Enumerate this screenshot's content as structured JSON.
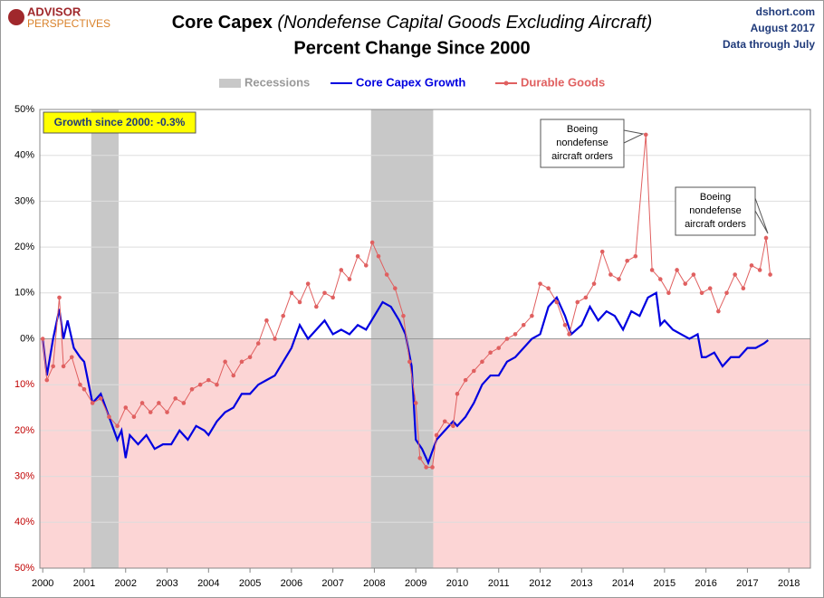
{
  "chart_data": {
    "type": "line",
    "logo": [
      "ADVISOR",
      "PERSPECTIVES"
    ],
    "source": [
      "dshort.com",
      "August 2017",
      "Data through July"
    ],
    "title": "Core Capex",
    "title_italic": "(Nondefense Capital Goods Excluding Aircraft)",
    "subtitle": "Percent Change Since 2000",
    "recessions_label": "Recessions",
    "recessions_color": "#c8c8c8",
    "recessions": [
      [
        2001.17,
        2001.83
      ],
      [
        2007.92,
        2009.42
      ]
    ],
    "negative_fill": "#fcd5d5",
    "xlim": [
      1999.93,
      2018.52
    ],
    "xticks": [
      2000,
      2001,
      2002,
      2003,
      2004,
      2005,
      2006,
      2007,
      2008,
      2009,
      2010,
      2011,
      2012,
      2013,
      2014,
      2015,
      2016,
      2017,
      2018
    ],
    "ylim": [
      -50,
      50
    ],
    "yticks": [
      {
        "value": -50,
        "label": "50%"
      },
      {
        "value": -40,
        "label": "40%"
      },
      {
        "value": -30,
        "label": "30%"
      },
      {
        "value": -20,
        "label": "20%"
      },
      {
        "value": -10,
        "label": "10%"
      },
      {
        "value": 0,
        "label": "0%"
      },
      {
        "value": 10,
        "label": "10%"
      },
      {
        "value": 20,
        "label": "20%"
      },
      {
        "value": 30,
        "label": "30%"
      },
      {
        "value": 40,
        "label": "40%"
      },
      {
        "value": 50,
        "label": "50%"
      }
    ],
    "grid": true,
    "series": [
      {
        "name": "Core Capex Growth",
        "color": "#0000e0",
        "markers": false,
        "x": [
          2000.0,
          2000.1,
          2000.25,
          2000.4,
          2000.5,
          2000.6,
          2000.75,
          2000.9,
          2001.0,
          2001.2,
          2001.4,
          2001.6,
          2001.8,
          2001.9,
          2002.0,
          2002.1,
          2002.3,
          2002.5,
          2002.7,
          2002.9,
          2003.1,
          2003.3,
          2003.5,
          2003.7,
          2003.9,
          2004.0,
          2004.2,
          2004.4,
          2004.6,
          2004.8,
          2005.0,
          2005.2,
          2005.4,
          2005.6,
          2005.8,
          2006.0,
          2006.2,
          2006.4,
          2006.6,
          2006.8,
          2007.0,
          2007.2,
          2007.4,
          2007.6,
          2007.8,
          2008.0,
          2008.2,
          2008.4,
          2008.6,
          2008.75,
          2008.9,
          2009.0,
          2009.15,
          2009.3,
          2009.5,
          2009.7,
          2009.9,
          2010.0,
          2010.2,
          2010.4,
          2010.6,
          2010.8,
          2011.0,
          2011.2,
          2011.4,
          2011.6,
          2011.8,
          2012.0,
          2012.2,
          2012.4,
          2012.6,
          2012.75,
          2013.0,
          2013.2,
          2013.4,
          2013.6,
          2013.8,
          2014.0,
          2014.2,
          2014.4,
          2014.6,
          2014.8,
          2014.9,
          2015.0,
          2015.2,
          2015.4,
          2015.6,
          2015.8,
          2015.9,
          2016.0,
          2016.2,
          2016.4,
          2016.6,
          2016.8,
          2017.0,
          2017.2,
          2017.4,
          2017.5
        ],
        "values": [
          0,
          -8,
          0,
          6.5,
          0,
          4,
          -2,
          -4,
          -5,
          -14,
          -12,
          -17,
          -22,
          -20,
          -26,
          -21,
          -23,
          -21,
          -24,
          -23,
          -23,
          -20,
          -22,
          -19,
          -20,
          -21,
          -18,
          -16,
          -15,
          -12,
          -12,
          -10,
          -9,
          -8,
          -5,
          -2,
          3,
          0,
          2,
          4,
          1,
          2,
          1,
          3,
          2,
          5,
          8,
          7,
          4,
          1,
          -6,
          -22,
          -24,
          -27,
          -22,
          -20,
          -18,
          -19,
          -17,
          -14,
          -10,
          -8,
          -8,
          -5,
          -4,
          -2,
          0,
          1,
          7,
          9,
          5,
          1,
          3,
          7,
          4,
          6,
          5,
          2,
          6,
          5,
          9,
          10,
          3,
          4,
          2,
          1,
          0,
          1,
          -4,
          -4,
          -3,
          -6,
          -4,
          -4,
          -2,
          -2,
          -1,
          -0.3
        ]
      },
      {
        "name": "Durable Goods",
        "color": "#e06060",
        "markers": true,
        "x": [
          2000.0,
          2000.1,
          2000.25,
          2000.4,
          2000.5,
          2000.7,
          2000.9,
          2001.0,
          2001.2,
          2001.4,
          2001.6,
          2001.8,
          2002.0,
          2002.2,
          2002.4,
          2002.6,
          2002.8,
          2003.0,
          2003.2,
          2003.4,
          2003.6,
          2003.8,
          2004.0,
          2004.2,
          2004.4,
          2004.6,
          2004.8,
          2005.0,
          2005.2,
          2005.4,
          2005.6,
          2005.8,
          2006.0,
          2006.2,
          2006.4,
          2006.6,
          2006.8,
          2007.0,
          2007.2,
          2007.4,
          2007.6,
          2007.8,
          2007.95,
          2008.1,
          2008.3,
          2008.5,
          2008.7,
          2008.85,
          2009.0,
          2009.1,
          2009.25,
          2009.4,
          2009.5,
          2009.7,
          2009.9,
          2010.0,
          2010.2,
          2010.4,
          2010.6,
          2010.8,
          2011.0,
          2011.2,
          2011.4,
          2011.6,
          2011.8,
          2012.0,
          2012.2,
          2012.4,
          2012.6,
          2012.7,
          2012.9,
          2013.1,
          2013.3,
          2013.5,
          2013.7,
          2013.9,
          2014.1,
          2014.3,
          2014.55,
          2014.7,
          2014.9,
          2015.1,
          2015.3,
          2015.5,
          2015.7,
          2015.9,
          2016.1,
          2016.3,
          2016.5,
          2016.7,
          2016.9,
          2017.1,
          2017.3,
          2017.45,
          2017.55
        ],
        "values": [
          0,
          -9,
          -6,
          9,
          -6,
          -4,
          -10,
          -11,
          -14,
          -13,
          -17,
          -19,
          -15,
          -17,
          -14,
          -16,
          -14,
          -16,
          -13,
          -14,
          -11,
          -10,
          -9,
          -10,
          -5,
          -8,
          -5,
          -4,
          -1,
          4,
          0,
          5,
          10,
          8,
          12,
          7,
          10,
          9,
          15,
          13,
          18,
          16,
          21,
          18,
          14,
          11,
          5,
          -5,
          -14,
          -26,
          -28,
          -28,
          -21,
          -18,
          -19,
          -12,
          -9,
          -7,
          -5,
          -3,
          -2,
          0,
          1,
          3,
          5,
          12,
          11,
          8,
          3,
          1,
          8,
          9,
          12,
          19,
          14,
          13,
          17,
          18,
          44.5,
          15,
          13,
          10,
          15,
          12,
          14,
          10,
          11,
          6,
          10,
          14,
          11,
          16,
          15,
          22,
          14
        ]
      }
    ],
    "growth_box": {
      "text": "Growth since 2000:  -0.3%",
      "fill": "#ffff00"
    },
    "annotations": [
      {
        "lines": [
          "Boeing",
          "nondefense",
          "aircraft orders"
        ]
      },
      {
        "lines": [
          "Boeing",
          "nondefense",
          "aircraft orders"
        ]
      }
    ]
  }
}
